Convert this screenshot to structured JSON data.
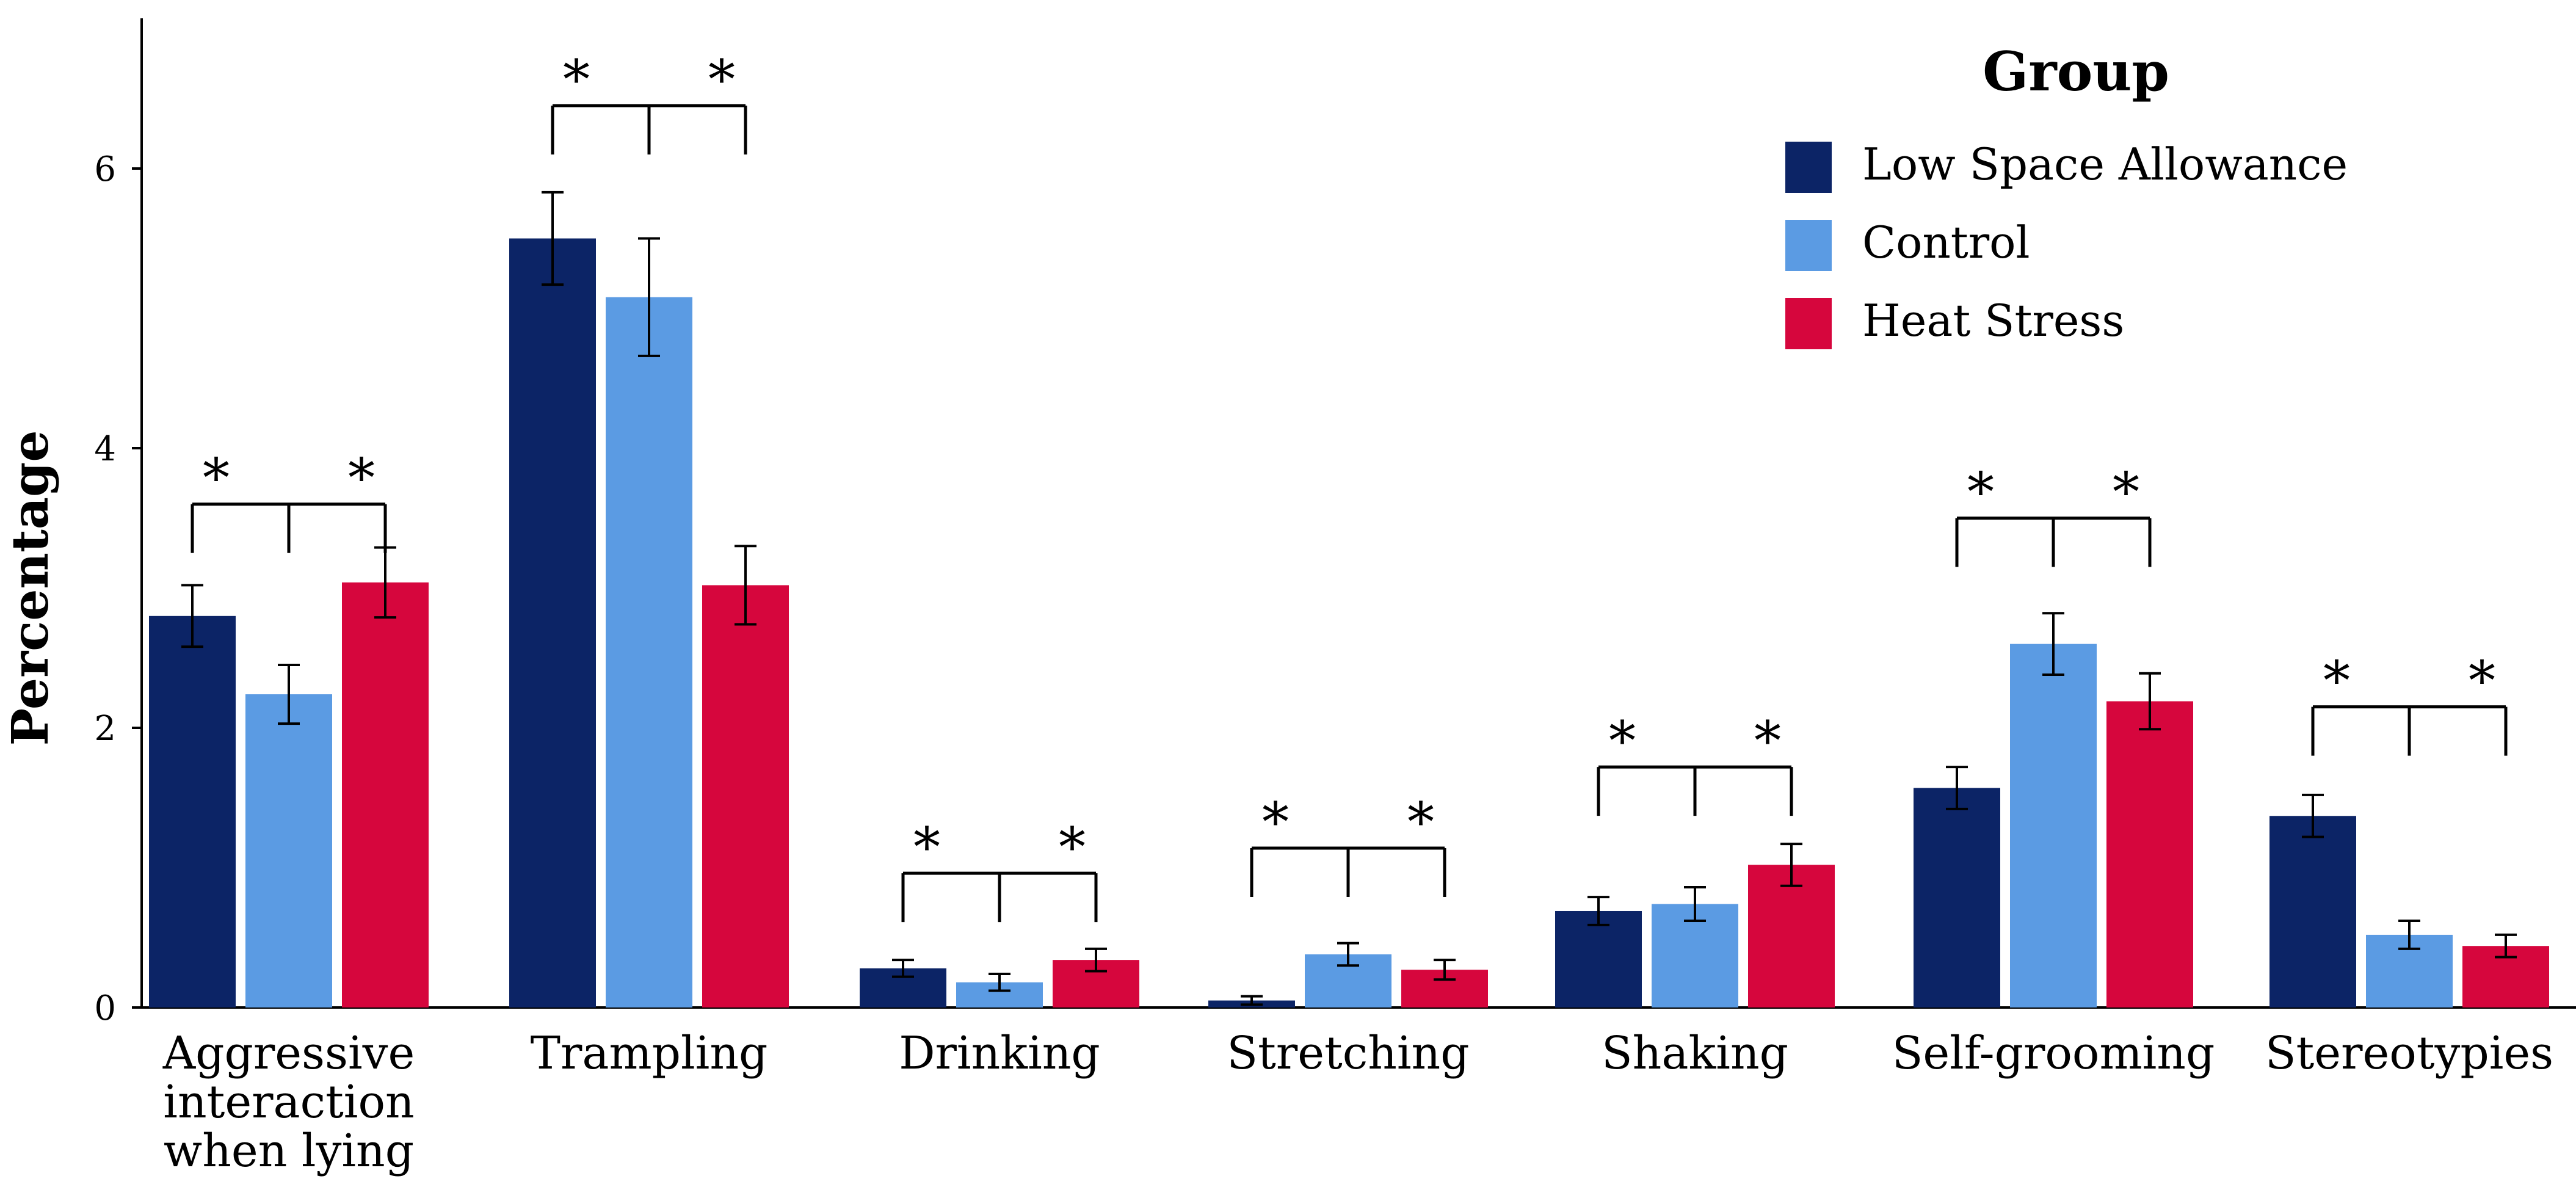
{
  "chart_data": {
    "type": "bar",
    "title": "",
    "xlabel": "",
    "ylabel": "Percentage",
    "ylim": [
      0,
      7
    ],
    "yticks": [
      0,
      2,
      4,
      6
    ],
    "grid": false,
    "legend": {
      "title": "Group",
      "position": "top-right"
    },
    "categories": [
      [
        "Aggressive",
        "interaction",
        "when lying"
      ],
      [
        "Trampling"
      ],
      [
        "Drinking"
      ],
      [
        "Stretching"
      ],
      [
        "Shaking"
      ],
      [
        "Self-grooming"
      ],
      [
        "Stereotypies"
      ]
    ],
    "series": [
      {
        "name": "Low Space Allowance",
        "color": "#0c2466",
        "values": [
          2.8,
          5.5,
          0.28,
          0.05,
          0.69,
          1.57,
          1.37
        ],
        "error": [
          0.22,
          0.33,
          0.06,
          0.03,
          0.1,
          0.15,
          0.15
        ]
      },
      {
        "name": "Control",
        "color": "#5b9be3",
        "values": [
          2.24,
          5.08,
          0.18,
          0.38,
          0.74,
          2.6,
          0.52
        ],
        "error": [
          0.21,
          0.42,
          0.06,
          0.08,
          0.12,
          0.22,
          0.1
        ]
      },
      {
        "name": "Heat Stress",
        "color": "#d6063d",
        "values": [
          3.04,
          3.02,
          0.34,
          0.27,
          1.02,
          2.19,
          0.44
        ],
        "error": [
          0.25,
          0.28,
          0.08,
          0.07,
          0.15,
          0.2,
          0.08
        ]
      }
    ],
    "significance": [
      {
        "category": 0,
        "y": 3.6,
        "marks": [
          "*",
          "*"
        ]
      },
      {
        "category": 1,
        "y": 6.45,
        "marks": [
          "*",
          "*"
        ]
      },
      {
        "category": 2,
        "y": 0.96,
        "marks": [
          "*",
          "*"
        ]
      },
      {
        "category": 3,
        "y": 1.14,
        "marks": [
          "*",
          "*"
        ]
      },
      {
        "category": 4,
        "y": 1.72,
        "marks": [
          "*",
          "*"
        ]
      },
      {
        "category": 5,
        "y": 3.5,
        "marks": [
          "*",
          "*"
        ]
      },
      {
        "category": 6,
        "y": 2.15,
        "marks": [
          "*",
          "*"
        ]
      }
    ]
  }
}
